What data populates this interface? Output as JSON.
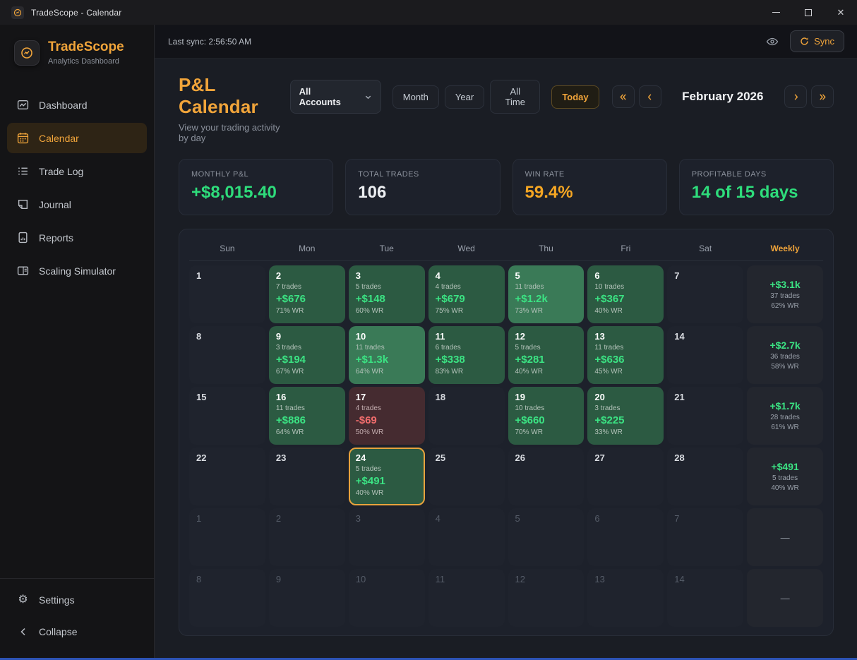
{
  "window": {
    "title": "TradeScope - Calendar"
  },
  "sidebar": {
    "brand": {
      "name": "TradeScope",
      "subtitle": "Analytics Dashboard"
    },
    "items": [
      {
        "label": "Dashboard"
      },
      {
        "label": "Calendar"
      },
      {
        "label": "Trade Log"
      },
      {
        "label": "Journal"
      },
      {
        "label": "Reports"
      },
      {
        "label": "Scaling Simulator"
      }
    ],
    "footer": [
      {
        "label": "Settings"
      },
      {
        "label": "Collapse"
      }
    ]
  },
  "topbar": {
    "last_sync": "Last sync: 2:56:50 AM",
    "sync_label": "Sync"
  },
  "header": {
    "title": "P&L Calendar",
    "subtitle": "View your trading activity by day",
    "account_filter": "All Accounts",
    "view_buttons": [
      "Month",
      "Year",
      "All Time"
    ],
    "today_label": "Today",
    "month_label": "February 2026"
  },
  "stats": [
    {
      "label": "MONTHLY P&L",
      "value": "+$8,015.40",
      "tone": "green"
    },
    {
      "label": "TOTAL TRADES",
      "value": "106",
      "tone": "white"
    },
    {
      "label": "WIN RATE",
      "value": "59.4%",
      "tone": "amber"
    },
    {
      "label": "PROFITABLE DAYS",
      "value": "14 of 15 days",
      "tone": "green"
    }
  ],
  "calendar": {
    "day_headers": [
      "Sun",
      "Mon",
      "Tue",
      "Wed",
      "Thu",
      "Fri",
      "Sat"
    ],
    "weekly_header": "Weekly",
    "weeks": [
      {
        "days": [
          {
            "num": "1"
          },
          {
            "num": "2",
            "trades": "7 trades",
            "pnl": "+$676",
            "wr": "71% WR",
            "tone": "win"
          },
          {
            "num": "3",
            "trades": "5 trades",
            "pnl": "+$148",
            "wr": "60% WR",
            "tone": "win"
          },
          {
            "num": "4",
            "trades": "4 trades",
            "pnl": "+$679",
            "wr": "75% WR",
            "tone": "win"
          },
          {
            "num": "5",
            "trades": "11 trades",
            "pnl": "+$1.2k",
            "wr": "73% WR",
            "tone": "win-strong"
          },
          {
            "num": "6",
            "trades": "10 trades",
            "pnl": "+$367",
            "wr": "40% WR",
            "tone": "win"
          },
          {
            "num": "7"
          }
        ],
        "weekly": {
          "pnl": "+$3.1k",
          "trades": "37 trades",
          "wr": "62% WR"
        }
      },
      {
        "days": [
          {
            "num": "8"
          },
          {
            "num": "9",
            "trades": "3 trades",
            "pnl": "+$194",
            "wr": "67% WR",
            "tone": "win"
          },
          {
            "num": "10",
            "trades": "11 trades",
            "pnl": "+$1.3k",
            "wr": "64% WR",
            "tone": "win-strong"
          },
          {
            "num": "11",
            "trades": "6 trades",
            "pnl": "+$338",
            "wr": "83% WR",
            "tone": "win"
          },
          {
            "num": "12",
            "trades": "5 trades",
            "pnl": "+$281",
            "wr": "40% WR",
            "tone": "win"
          },
          {
            "num": "13",
            "trades": "11 trades",
            "pnl": "+$636",
            "wr": "45% WR",
            "tone": "win"
          },
          {
            "num": "14"
          }
        ],
        "weekly": {
          "pnl": "+$2.7k",
          "trades": "36 trades",
          "wr": "58% WR"
        }
      },
      {
        "days": [
          {
            "num": "15"
          },
          {
            "num": "16",
            "trades": "11 trades",
            "pnl": "+$886",
            "wr": "64% WR",
            "tone": "win"
          },
          {
            "num": "17",
            "trades": "4 trades",
            "pnl": "-$69",
            "wr": "50% WR",
            "tone": "loss"
          },
          {
            "num": "18"
          },
          {
            "num": "19",
            "trades": "10 trades",
            "pnl": "+$660",
            "wr": "70% WR",
            "tone": "win"
          },
          {
            "num": "20",
            "trades": "3 trades",
            "pnl": "+$225",
            "wr": "33% WR",
            "tone": "win"
          },
          {
            "num": "21"
          }
        ],
        "weekly": {
          "pnl": "+$1.7k",
          "trades": "28 trades",
          "wr": "61% WR"
        }
      },
      {
        "days": [
          {
            "num": "22"
          },
          {
            "num": "23"
          },
          {
            "num": "24",
            "trades": "5 trades",
            "pnl": "+$491",
            "wr": "40% WR",
            "tone": "win",
            "today": true
          },
          {
            "num": "25"
          },
          {
            "num": "26"
          },
          {
            "num": "27"
          },
          {
            "num": "28"
          }
        ],
        "weekly": {
          "pnl": "+$491",
          "trades": "5 trades",
          "wr": "40% WR"
        }
      },
      {
        "days": [
          {
            "num": "1",
            "dim": true
          },
          {
            "num": "2",
            "dim": true
          },
          {
            "num": "3",
            "dim": true
          },
          {
            "num": "4",
            "dim": true
          },
          {
            "num": "5",
            "dim": true
          },
          {
            "num": "6",
            "dim": true
          },
          {
            "num": "7",
            "dim": true
          }
        ],
        "weekly": {
          "empty": "—"
        }
      },
      {
        "days": [
          {
            "num": "8",
            "dim": true
          },
          {
            "num": "9",
            "dim": true
          },
          {
            "num": "10",
            "dim": true
          },
          {
            "num": "11",
            "dim": true
          },
          {
            "num": "12",
            "dim": true
          },
          {
            "num": "13",
            "dim": true
          },
          {
            "num": "14",
            "dim": true
          }
        ],
        "weekly": {
          "empty": "—"
        }
      }
    ]
  },
  "colors": {
    "accent_amber": "#f0a43a",
    "profit_green": "#3be383",
    "loss_red": "#f26d6d",
    "win_cell": "#2c5a42",
    "win_strong_cell": "#3a7a57",
    "loss_cell": "#452b30"
  }
}
